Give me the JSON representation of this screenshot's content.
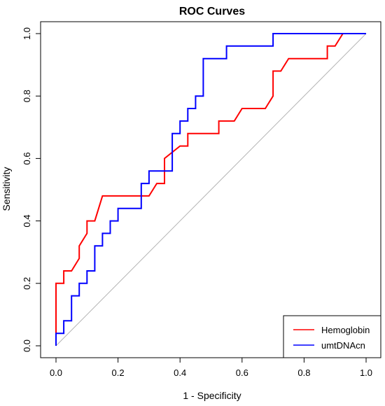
{
  "chart_data": {
    "type": "line",
    "title": "ROC Curves",
    "xlabel": "1 - Specificity",
    "ylabel": "Sensitivity",
    "xlim": [
      0,
      1
    ],
    "ylim": [
      0,
      1
    ],
    "xticks": [
      "0.0",
      "0.2",
      "0.4",
      "0.6",
      "0.8",
      "1.0"
    ],
    "yticks": [
      "0.0",
      "0.2",
      "0.4",
      "0.6",
      "0.8",
      "1.0"
    ],
    "grid": false,
    "legend_position": "bottom-right",
    "reference_line": {
      "from": [
        0,
        0
      ],
      "to": [
        1,
        1
      ],
      "color": "#b3b3b3"
    },
    "series": [
      {
        "name": "Hemoglobin",
        "color": "#ff0000",
        "points": [
          [
            0,
            0
          ],
          [
            0,
            0.2
          ],
          [
            0.025,
            0.2
          ],
          [
            0.025,
            0.24
          ],
          [
            0.05,
            0.24
          ],
          [
            0.075,
            0.28
          ],
          [
            0.075,
            0.32
          ],
          [
            0.1,
            0.36
          ],
          [
            0.1,
            0.4
          ],
          [
            0.125,
            0.4
          ],
          [
            0.15,
            0.48
          ],
          [
            0.3,
            0.48
          ],
          [
            0.325,
            0.52
          ],
          [
            0.35,
            0.52
          ],
          [
            0.35,
            0.6
          ],
          [
            0.4,
            0.64
          ],
          [
            0.425,
            0.64
          ],
          [
            0.425,
            0.68
          ],
          [
            0.525,
            0.68
          ],
          [
            0.525,
            0.72
          ],
          [
            0.575,
            0.72
          ],
          [
            0.6,
            0.76
          ],
          [
            0.675,
            0.76
          ],
          [
            0.7,
            0.8
          ],
          [
            0.7,
            0.88
          ],
          [
            0.725,
            0.88
          ],
          [
            0.75,
            0.92
          ],
          [
            0.875,
            0.92
          ],
          [
            0.875,
            0.96
          ],
          [
            0.9,
            0.96
          ],
          [
            0.925,
            1.0
          ],
          [
            1.0,
            1.0
          ]
        ]
      },
      {
        "name": "umtDNAcn",
        "color": "#0000ff",
        "points": [
          [
            0,
            0
          ],
          [
            0,
            0.04
          ],
          [
            0.025,
            0.04
          ],
          [
            0.025,
            0.08
          ],
          [
            0.05,
            0.08
          ],
          [
            0.05,
            0.16
          ],
          [
            0.075,
            0.16
          ],
          [
            0.075,
            0.2
          ],
          [
            0.1,
            0.2
          ],
          [
            0.1,
            0.24
          ],
          [
            0.125,
            0.24
          ],
          [
            0.125,
            0.32
          ],
          [
            0.15,
            0.32
          ],
          [
            0.15,
            0.36
          ],
          [
            0.175,
            0.36
          ],
          [
            0.175,
            0.4
          ],
          [
            0.2,
            0.4
          ],
          [
            0.2,
            0.44
          ],
          [
            0.275,
            0.44
          ],
          [
            0.275,
            0.52
          ],
          [
            0.3,
            0.52
          ],
          [
            0.3,
            0.56
          ],
          [
            0.375,
            0.56
          ],
          [
            0.375,
            0.68
          ],
          [
            0.4,
            0.68
          ],
          [
            0.4,
            0.72
          ],
          [
            0.425,
            0.72
          ],
          [
            0.425,
            0.76
          ],
          [
            0.45,
            0.76
          ],
          [
            0.45,
            0.8
          ],
          [
            0.475,
            0.8
          ],
          [
            0.475,
            0.92
          ],
          [
            0.55,
            0.92
          ],
          [
            0.55,
            0.96
          ],
          [
            0.7,
            0.96
          ],
          [
            0.7,
            1.0
          ],
          [
            1.0,
            1.0
          ]
        ]
      }
    ]
  }
}
